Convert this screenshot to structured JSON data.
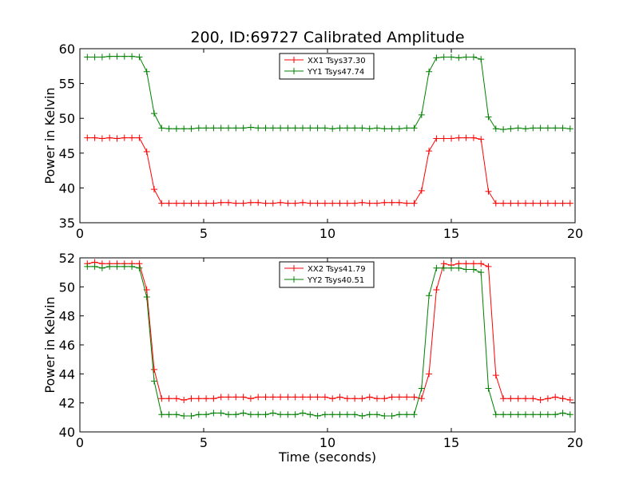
{
  "title": "200, ID:69727 Calibrated Amplitude",
  "colors": {
    "red": "#ff0000",
    "green": "#008000"
  },
  "chart_data": [
    {
      "type": "line",
      "ylabel": "Power in Kelvin",
      "xlabel": "",
      "xlim": [
        0,
        20
      ],
      "ylim": [
        35,
        60
      ],
      "xticks": [
        0,
        5,
        10,
        15,
        20
      ],
      "yticks": [
        35,
        40,
        45,
        50,
        55,
        60
      ],
      "legend_position": "top-center",
      "x": [
        0.3,
        0.6,
        0.9,
        1.2,
        1.5,
        1.8,
        2.1,
        2.4,
        2.7,
        3.0,
        3.3,
        3.6,
        3.9,
        4.2,
        4.5,
        4.8,
        5.1,
        5.4,
        5.7,
        6.0,
        6.3,
        6.6,
        6.9,
        7.2,
        7.5,
        7.8,
        8.1,
        8.4,
        8.7,
        9.0,
        9.3,
        9.6,
        9.9,
        10.2,
        10.5,
        10.8,
        11.1,
        11.4,
        11.7,
        12.0,
        12.3,
        12.6,
        12.9,
        13.2,
        13.5,
        13.8,
        14.1,
        14.4,
        14.7,
        15.0,
        15.3,
        15.6,
        15.9,
        16.2,
        16.5,
        16.8,
        17.1,
        17.4,
        17.7,
        18.0,
        18.3,
        18.6,
        18.9,
        19.2,
        19.5,
        19.8
      ],
      "series": [
        {
          "name": "XX1 Tsys37.30",
          "color": "#ff0000",
          "values": [
            47.2,
            47.2,
            47.1,
            47.2,
            47.1,
            47.2,
            47.2,
            47.2,
            45.2,
            39.8,
            37.8,
            37.8,
            37.8,
            37.8,
            37.8,
            37.8,
            37.8,
            37.8,
            37.9,
            37.9,
            37.8,
            37.8,
            37.9,
            37.9,
            37.8,
            37.8,
            37.9,
            37.8,
            37.8,
            37.9,
            37.8,
            37.8,
            37.8,
            37.8,
            37.8,
            37.8,
            37.8,
            37.9,
            37.8,
            37.8,
            37.9,
            37.9,
            37.9,
            37.8,
            37.8,
            39.6,
            45.3,
            47.1,
            47.1,
            47.1,
            47.2,
            47.2,
            47.2,
            47.0,
            39.5,
            37.8,
            37.8,
            37.8,
            37.8,
            37.8,
            37.8,
            37.8,
            37.8,
            37.8,
            37.8,
            37.8
          ]
        },
        {
          "name": "YY1 Tsys47.74",
          "color": "#008000",
          "values": [
            58.8,
            58.8,
            58.8,
            58.9,
            58.9,
            58.9,
            58.9,
            58.8,
            56.7,
            50.7,
            48.6,
            48.5,
            48.5,
            48.5,
            48.5,
            48.6,
            48.6,
            48.6,
            48.6,
            48.6,
            48.6,
            48.6,
            48.7,
            48.6,
            48.6,
            48.6,
            48.6,
            48.6,
            48.6,
            48.6,
            48.6,
            48.6,
            48.6,
            48.5,
            48.6,
            48.6,
            48.6,
            48.6,
            48.5,
            48.6,
            48.5,
            48.5,
            48.5,
            48.6,
            48.6,
            50.5,
            56.7,
            58.7,
            58.8,
            58.8,
            58.7,
            58.8,
            58.8,
            58.5,
            50.2,
            48.5,
            48.4,
            48.5,
            48.6,
            48.5,
            48.6,
            48.6,
            48.6,
            48.6,
            48.6,
            48.5
          ]
        }
      ]
    },
    {
      "type": "line",
      "ylabel": "Power in Kelvin",
      "xlabel": "Time (seconds)",
      "xlim": [
        0,
        20
      ],
      "ylim": [
        40,
        52
      ],
      "xticks": [
        0,
        5,
        10,
        15,
        20
      ],
      "yticks": [
        40,
        42,
        44,
        46,
        48,
        50,
        52
      ],
      "legend_position": "top-center",
      "x": [
        0.3,
        0.6,
        0.9,
        1.2,
        1.5,
        1.8,
        2.1,
        2.4,
        2.7,
        3.0,
        3.3,
        3.6,
        3.9,
        4.2,
        4.5,
        4.8,
        5.1,
        5.4,
        5.7,
        6.0,
        6.3,
        6.6,
        6.9,
        7.2,
        7.5,
        7.8,
        8.1,
        8.4,
        8.7,
        9.0,
        9.3,
        9.6,
        9.9,
        10.2,
        10.5,
        10.8,
        11.1,
        11.4,
        11.7,
        12.0,
        12.3,
        12.6,
        12.9,
        13.2,
        13.5,
        13.8,
        14.1,
        14.4,
        14.7,
        15.0,
        15.3,
        15.6,
        15.9,
        16.2,
        16.5,
        16.8,
        17.1,
        17.4,
        17.7,
        18.0,
        18.3,
        18.6,
        18.9,
        19.2,
        19.5,
        19.8
      ],
      "series": [
        {
          "name": "XX2 Tsys41.79",
          "color": "#ff0000",
          "values": [
            51.6,
            51.7,
            51.6,
            51.6,
            51.6,
            51.6,
            51.6,
            51.6,
            49.8,
            44.3,
            42.3,
            42.3,
            42.3,
            42.2,
            42.3,
            42.3,
            42.3,
            42.3,
            42.4,
            42.4,
            42.4,
            42.4,
            42.3,
            42.4,
            42.4,
            42.4,
            42.4,
            42.4,
            42.4,
            42.4,
            42.4,
            42.4,
            42.4,
            42.3,
            42.4,
            42.3,
            42.3,
            42.3,
            42.4,
            42.3,
            42.3,
            42.4,
            42.4,
            42.4,
            42.4,
            42.3,
            44.0,
            49.8,
            51.6,
            51.5,
            51.6,
            51.6,
            51.6,
            51.6,
            51.4,
            43.9,
            42.3,
            42.3,
            42.3,
            42.3,
            42.3,
            42.2,
            42.3,
            42.4,
            42.3,
            42.2
          ]
        },
        {
          "name": "YY2 Tsys40.51",
          "color": "#008000",
          "values": [
            51.4,
            51.4,
            51.3,
            51.4,
            51.4,
            51.4,
            51.4,
            51.3,
            49.3,
            43.5,
            41.2,
            41.2,
            41.2,
            41.1,
            41.1,
            41.2,
            41.2,
            41.3,
            41.3,
            41.2,
            41.2,
            41.3,
            41.2,
            41.2,
            41.2,
            41.3,
            41.2,
            41.2,
            41.2,
            41.3,
            41.2,
            41.1,
            41.2,
            41.2,
            41.2,
            41.2,
            41.2,
            41.1,
            41.2,
            41.2,
            41.1,
            41.1,
            41.2,
            41.2,
            41.2,
            43.0,
            49.4,
            51.3,
            51.3,
            51.3,
            51.3,
            51.2,
            51.2,
            51.0,
            43.0,
            41.2,
            41.2,
            41.2,
            41.2,
            41.2,
            41.2,
            41.2,
            41.2,
            41.2,
            41.3,
            41.2
          ]
        }
      ]
    }
  ]
}
